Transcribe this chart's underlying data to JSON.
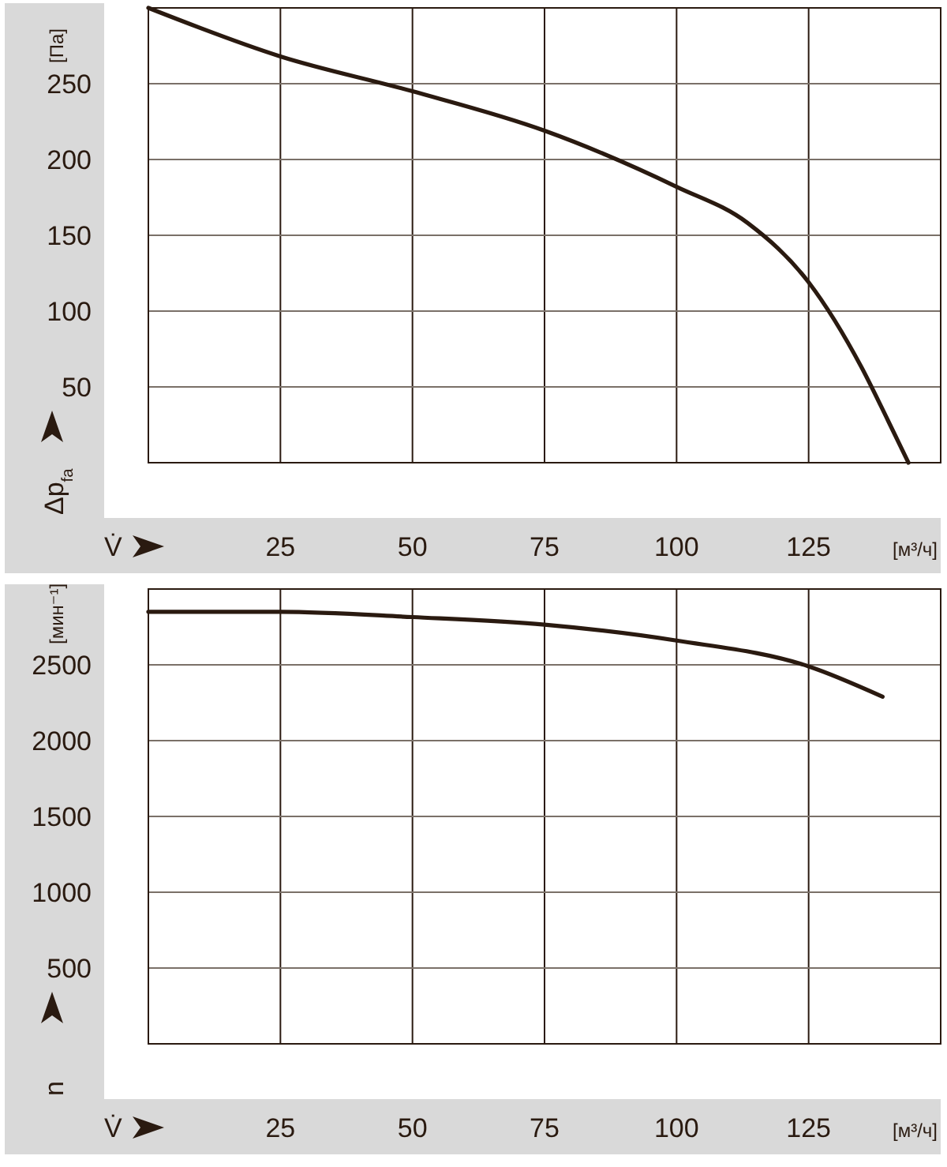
{
  "chart_data": [
    {
      "type": "line",
      "ylabel": "Δp$_{fa}$",
      "xlabel": "V̇",
      "annotations": [
        "[Па]",
        "[м³/ч]"
      ],
      "series": [
        {
          "color": "#2a1a10",
          "x": [
            0,
            25,
            50,
            75,
            100,
            113.5,
            125,
            135,
            140,
            143.9
          ],
          "values": [
            300,
            268,
            245,
            219,
            182,
            158,
            119,
            63,
            28,
            0
          ]
        }
      ],
      "xlim": [
        0,
        150
      ],
      "xticks": [
        25,
        50,
        75,
        100,
        125
      ],
      "ylim": [
        0,
        300
      ],
      "yticks": [
        50,
        100,
        150,
        200,
        250
      ],
      "grid": true,
      "line_style": "solid"
    },
    {
      "type": "line",
      "ylabel": "n",
      "xlabel": "V̇",
      "annotations": [
        "[мин⁻¹]",
        "[м³/ч]"
      ],
      "series": [
        {
          "color": "#2a1a10",
          "x": [
            0,
            25,
            50,
            75,
            100,
            125,
            139
          ],
          "values": [
            2850,
            2850,
            2815,
            2765,
            2660,
            2490,
            2290
          ]
        }
      ],
      "xlim": [
        0,
        150
      ],
      "xticks": [
        25,
        50,
        75,
        100,
        125
      ],
      "ylim": [
        0,
        3000
      ],
      "yticks": [
        500,
        1000,
        1500,
        2000,
        2500
      ],
      "grid": true,
      "line_style": "solid"
    }
  ]
}
